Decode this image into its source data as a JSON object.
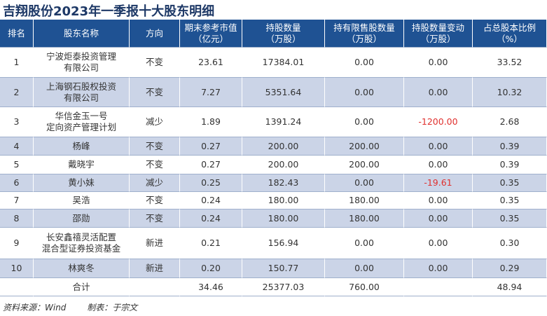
{
  "header": {
    "title": "吉翔股份2023年一季报十大股东明细"
  },
  "table": {
    "columns": [
      [
        "排名"
      ],
      [
        "股东名称"
      ],
      [
        "方向"
      ],
      [
        "期末参考市值",
        "（亿元）"
      ],
      [
        "持股数量",
        "（万股）"
      ],
      [
        "持有限售股数量",
        "（万股）"
      ],
      [
        "持股数量变动",
        "（万股）"
      ],
      [
        "占总股本比例",
        "（%）"
      ]
    ],
    "rows": [
      [
        "1",
        [
          "宁波炬泰投资管理",
          "有限公司"
        ],
        "不变",
        "23.61",
        "17384.01",
        "0.00",
        "0.00",
        "33.52"
      ],
      [
        "2",
        [
          "上海钢石股权投资",
          "有限公司"
        ],
        "不变",
        "7.27",
        "5351.64",
        "0.00",
        "0.00",
        "10.32"
      ],
      [
        "3",
        [
          "华信金玉一号",
          "定向资产管理计划"
        ],
        "减少",
        "1.89",
        "1391.24",
        "0.00",
        "-1200.00",
        "2.68"
      ],
      [
        "4",
        [
          "杨峰"
        ],
        "不变",
        "0.27",
        "200.00",
        "200.00",
        "0.00",
        "0.39"
      ],
      [
        "5",
        [
          "戴晓宇"
        ],
        "不变",
        "0.27",
        "200.00",
        "200.00",
        "0.00",
        "0.39"
      ],
      [
        "6",
        [
          "黄小妹"
        ],
        "减少",
        "0.25",
        "182.43",
        "0.00",
        "-19.61",
        "0.35"
      ],
      [
        "7",
        [
          "吴浩"
        ],
        "不变",
        "0.24",
        "180.00",
        "180.00",
        "0.00",
        "0.35"
      ],
      [
        "8",
        [
          "邵勋"
        ],
        "不变",
        "0.24",
        "180.00",
        "180.00",
        "0.00",
        "0.35"
      ],
      [
        "9",
        [
          "长安鑫禧灵活配置",
          "混合型证券投资基金"
        ],
        "新进",
        "0.21",
        "156.94",
        "0.00",
        "0.00",
        "0.30"
      ],
      [
        "10",
        [
          "林爽冬"
        ],
        "新进",
        "0.20",
        "150.77",
        "0.00",
        "0.00",
        "0.29"
      ]
    ],
    "total": {
      "label": "合计",
      "market_value": "34.46",
      "shares": "25377.03",
      "restricted": "760.00",
      "ratio": "48.94"
    }
  },
  "footer": {
    "source": "资料来源：Wind",
    "author": "制表：于宗文"
  }
}
